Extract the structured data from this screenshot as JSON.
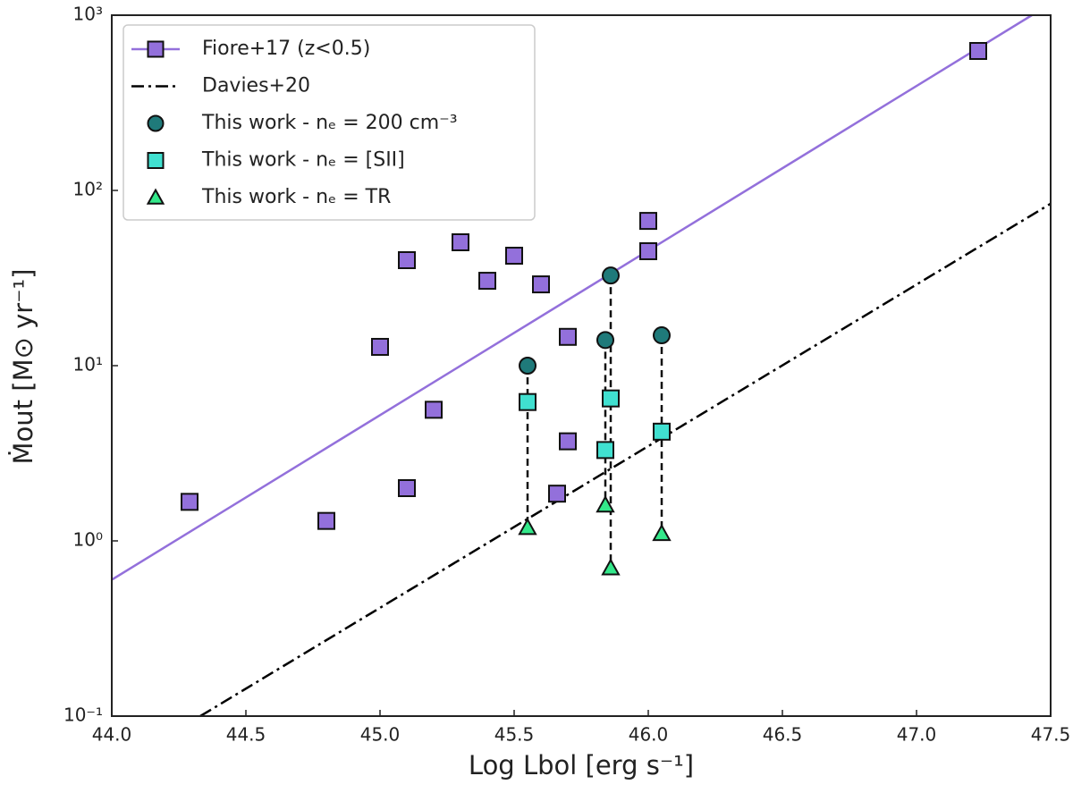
{
  "chart_data": {
    "type": "scatter",
    "x_label": "Log Lbol [erg s⁻¹]",
    "y_label": "Ṁout [M⊙ yr⁻¹]",
    "xlim": [
      44.0,
      47.5
    ],
    "ylim": [
      0.1,
      1000
    ],
    "y_scale": "log",
    "xticks": [
      {
        "value": 44,
        "label": "44.0"
      },
      44.5,
      {
        "value": 45,
        "label": "45.0"
      },
      45.5,
      {
        "value": 46,
        "label": "46.0"
      },
      46.5,
      {
        "value": 47,
        "label": "47.0"
      },
      47.5
    ],
    "yticks": [
      {
        "value": 0.1,
        "label": "10⁻¹"
      },
      {
        "value": 1,
        "label": "10⁰"
      },
      {
        "value": 10,
        "label": "10¹"
      },
      {
        "value": 100,
        "label": "10²"
      },
      {
        "value": 1000,
        "label": "10³"
      }
    ],
    "legend": "upper left",
    "series": [
      {
        "name": "Fiore+17 (z<0.5)",
        "color": "#9370db",
        "marker": "square",
        "x": [
          44.29,
          44.8,
          45.0,
          45.1,
          45.1,
          45.2,
          45.3,
          45.4,
          45.5,
          45.6,
          45.7,
          45.7,
          45.66,
          46.0,
          46.0,
          47.23
        ],
        "values": [
          1.67,
          1.3,
          12.8,
          40,
          2.0,
          5.6,
          50.6,
          30.5,
          42.4,
          29.1,
          14.6,
          3.7,
          1.86,
          67,
          45,
          625
        ],
        "fit": {
          "x": [
            44.0,
            47.43
          ],
          "values": [
            0.6,
            1000
          ]
        }
      },
      {
        "name": "Davies+20",
        "color": "#000000",
        "linestyle": "dashdot",
        "x": [
          44.33,
          47.5
        ],
        "values": [
          0.1,
          84
        ]
      },
      {
        "name": "This work - nₑ = 200 cm⁻³",
        "color": "#1f7a7a",
        "marker": "circle",
        "x": [
          45.55,
          45.84,
          45.86,
          46.05
        ],
        "values": [
          10,
          14,
          32.7,
          14.9
        ]
      },
      {
        "name": "This work - nₑ = [SII]",
        "color": "#40e0d0",
        "marker": "square",
        "x": [
          45.55,
          45.84,
          45.86,
          46.05
        ],
        "values": [
          6.2,
          3.3,
          6.5,
          4.2
        ]
      },
      {
        "name": "This work - nₑ = TR",
        "color": "#33e88a",
        "marker": "triangle",
        "x": [
          45.55,
          45.84,
          45.86,
          46.05
        ],
        "values": [
          1.19,
          1.6,
          0.7,
          1.1
        ]
      }
    ]
  }
}
